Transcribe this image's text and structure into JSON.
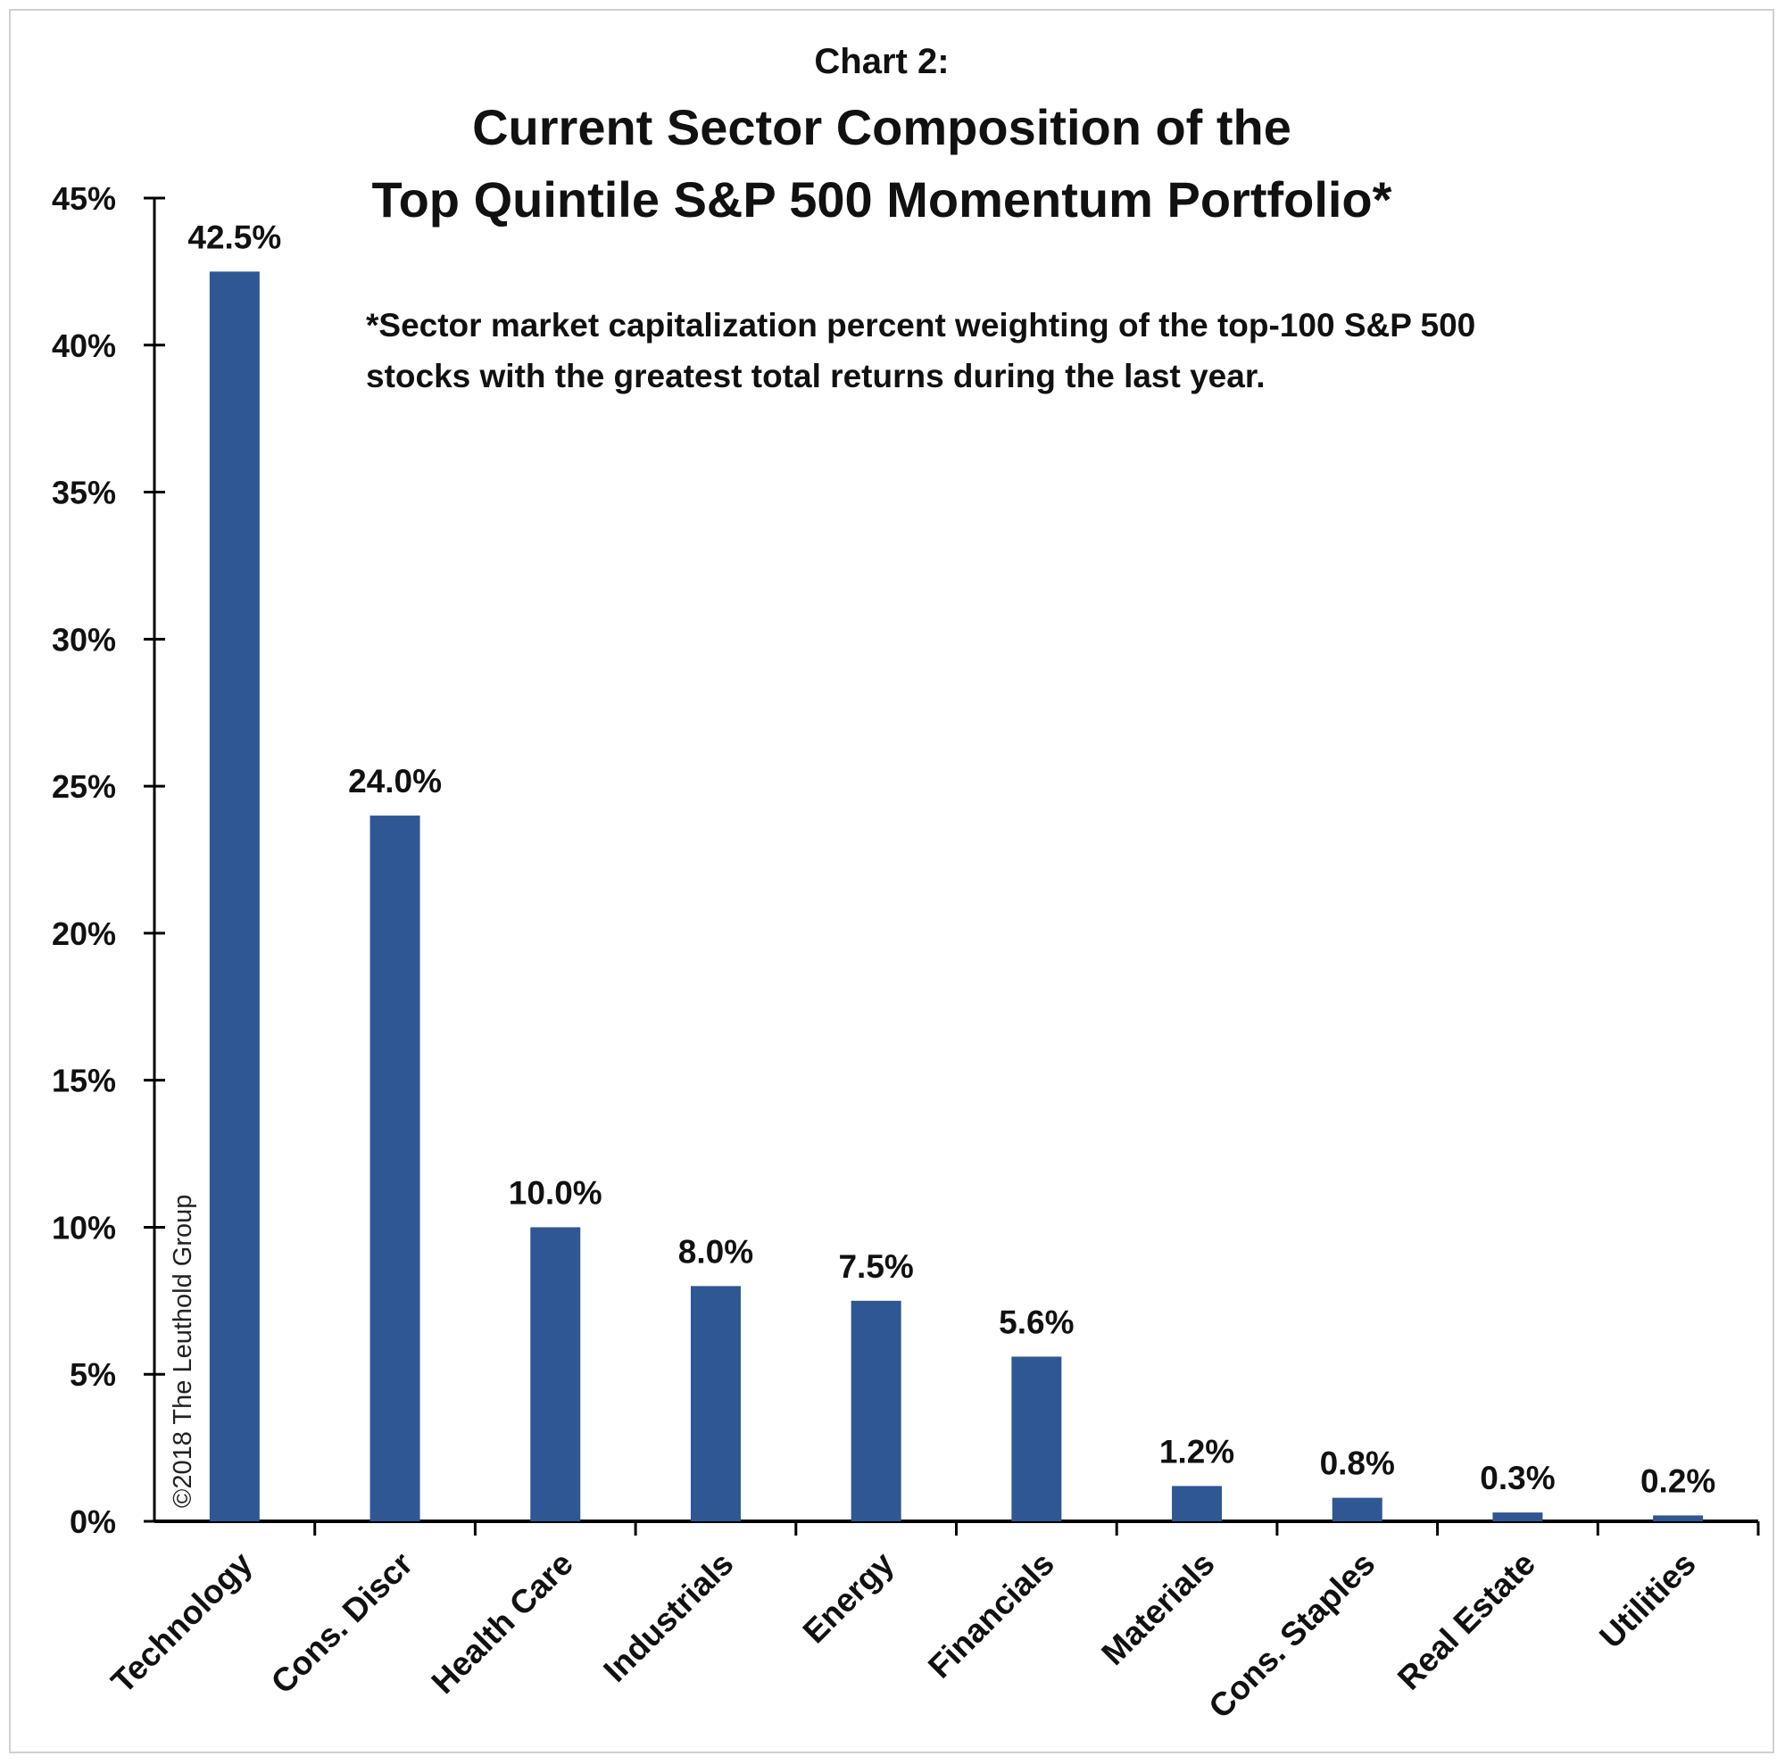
{
  "chart_data": {
    "type": "bar",
    "label": "Chart 2:",
    "title_lines": [
      "Current Sector Composition of the",
      "Top Quintile S&P 500 Momentum Portfolio*"
    ],
    "footnote_lines": [
      "*Sector market capitalization percent weighting of the top-100 S&P 500",
      "stocks with the greatest total returns during the last year."
    ],
    "categories": [
      "Technology",
      "Cons. Discr",
      "Health Care",
      "Industrials",
      "Energy",
      "Financials",
      "Materials",
      "Cons. Staples",
      "Real Estate",
      "Utilities"
    ],
    "values": [
      42.5,
      24.0,
      10.0,
      8.0,
      7.5,
      5.6,
      1.2,
      0.8,
      0.3,
      0.2
    ],
    "data_labels": [
      "42.5%",
      "24.0%",
      "10.0%",
      "8.0%",
      "7.5%",
      "5.6%",
      "1.2%",
      "0.8%",
      "0.3%",
      "0.2%"
    ],
    "yticks": [
      0,
      5,
      10,
      15,
      20,
      25,
      30,
      35,
      40,
      45
    ],
    "ytick_labels": [
      "0%",
      "5%",
      "10%",
      "15%",
      "20%",
      "25%",
      "30%",
      "35%",
      "40%",
      "45%"
    ],
    "ylim": [
      0,
      45
    ],
    "xlabel": "",
    "ylabel": "",
    "grid": false,
    "legend": "none",
    "bar_color": "#2e5793",
    "watermark": "©2018 The Leuthold Group"
  }
}
